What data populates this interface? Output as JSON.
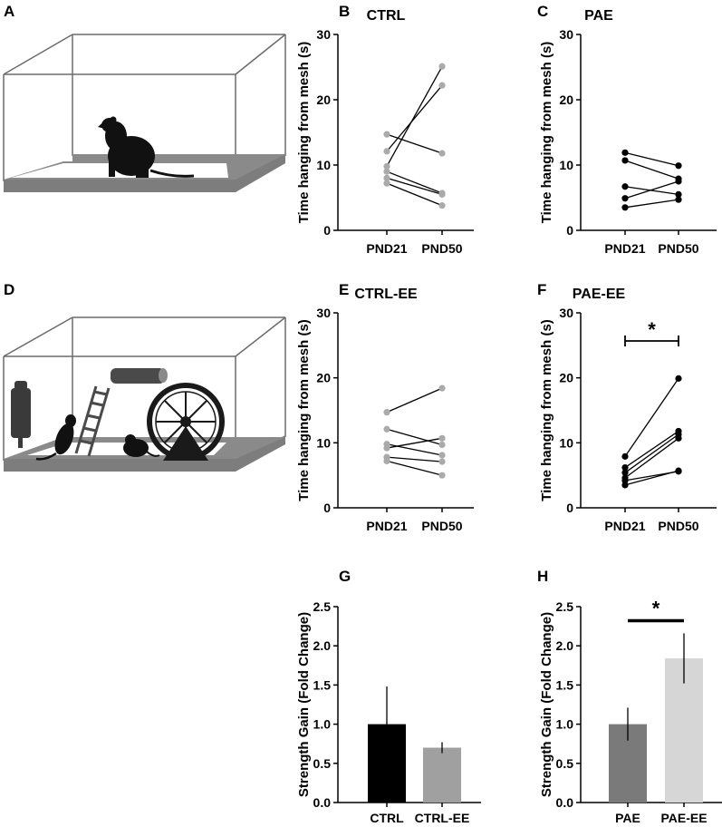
{
  "panel_labels": [
    "A",
    "B",
    "C",
    "D",
    "E",
    "F",
    "G",
    "H"
  ],
  "colors": {
    "ctrl_marker": "#aaaaaa",
    "pae_marker": "#000000",
    "bar_ctrl": "#000000",
    "bar_ctrl_ee": "#a0a0a0",
    "bar_pae": "#7a7a7a",
    "bar_pae_ee": "#d6d6d6",
    "cage_floor": "#8a8a8a"
  },
  "illustrations": {
    "standard_cage": "standard-housing-cage-with-rat",
    "enriched_cage": "enriched-environment-cage-with-rats-ladder-wheel-tube-bottle"
  },
  "chart_data": [
    {
      "id": "B",
      "type": "line",
      "title": "CTRL",
      "categories": [
        "PND21",
        "PND50"
      ],
      "ylabel": "Time hanging from mesh (s)",
      "ylim": [
        0,
        30
      ],
      "yticks": [
        0,
        10,
        20,
        30
      ],
      "marker_color": "#aaaaaa",
      "line_color": "#000000",
      "pairs": [
        [
          14.7,
          11.8
        ],
        [
          12.1,
          22.2
        ],
        [
          9.8,
          25.1
        ],
        [
          9.0,
          5.7
        ],
        [
          8.0,
          5.5
        ],
        [
          7.2,
          3.8
        ]
      ]
    },
    {
      "id": "C",
      "type": "line",
      "title": "PAE",
      "categories": [
        "PND21",
        "PND50"
      ],
      "ylabel": "Time hanging from mesh (s)",
      "ylim": [
        0,
        30
      ],
      "yticks": [
        0,
        10,
        20,
        30
      ],
      "marker_color": "#000000",
      "line_color": "#000000",
      "pairs": [
        [
          11.9,
          9.9
        ],
        [
          10.7,
          7.9
        ],
        [
          6.7,
          5.5
        ],
        [
          4.9,
          7.5
        ],
        [
          3.5,
          4.7
        ]
      ]
    },
    {
      "id": "E",
      "type": "line",
      "title": "CTRL-EE",
      "categories": [
        "PND21",
        "PND50"
      ],
      "ylabel": "Time hanging from mesh (s)",
      "ylim": [
        0,
        30
      ],
      "yticks": [
        0,
        10,
        20,
        30
      ],
      "marker_color": "#aaaaaa",
      "line_color": "#000000",
      "pairs": [
        [
          14.7,
          18.4
        ],
        [
          12.1,
          9.7
        ],
        [
          9.8,
          8.1
        ],
        [
          9.2,
          10.7
        ],
        [
          7.8,
          7.1
        ],
        [
          7.2,
          5.0
        ]
      ]
    },
    {
      "id": "F",
      "type": "line",
      "title": "PAE-EE",
      "categories": [
        "PND21",
        "PND50"
      ],
      "ylabel": "Time hanging from mesh (s)",
      "ylim": [
        0,
        30
      ],
      "yticks": [
        0,
        10,
        20,
        30
      ],
      "marker_color": "#000000",
      "line_color": "#000000",
      "pairs": [
        [
          7.9,
          19.9
        ],
        [
          6.2,
          11.8
        ],
        [
          5.4,
          11.3
        ],
        [
          4.6,
          10.7
        ],
        [
          4.2,
          5.6
        ],
        [
          3.5,
          5.7
        ]
      ],
      "significance": "*"
    },
    {
      "id": "G",
      "type": "bar",
      "title": "",
      "categories": [
        "CTRL",
        "CTRL-EE"
      ],
      "ylabel": "Strength Gain (Fold Change)",
      "ylim": [
        0,
        2.5
      ],
      "yticks": [
        "0.0",
        "0.5",
        "1.0",
        "1.5",
        "2.0",
        "2.5"
      ],
      "values": [
        1.0,
        0.7
      ],
      "errors": [
        0.48,
        0.07
      ],
      "colors": [
        "#000000",
        "#a0a0a0"
      ]
    },
    {
      "id": "H",
      "type": "bar",
      "title": "",
      "categories": [
        "PAE",
        "PAE-EE"
      ],
      "ylabel": "Strength Gain (Fold Change)",
      "ylim": [
        0,
        2.5
      ],
      "yticks": [
        "0.0",
        "0.5",
        "1.0",
        "1.5",
        "2.0",
        "2.5"
      ],
      "values": [
        1.0,
        1.84
      ],
      "errors": [
        0.21,
        0.32
      ],
      "colors": [
        "#7a7a7a",
        "#d6d6d6"
      ],
      "significance": "*"
    }
  ]
}
